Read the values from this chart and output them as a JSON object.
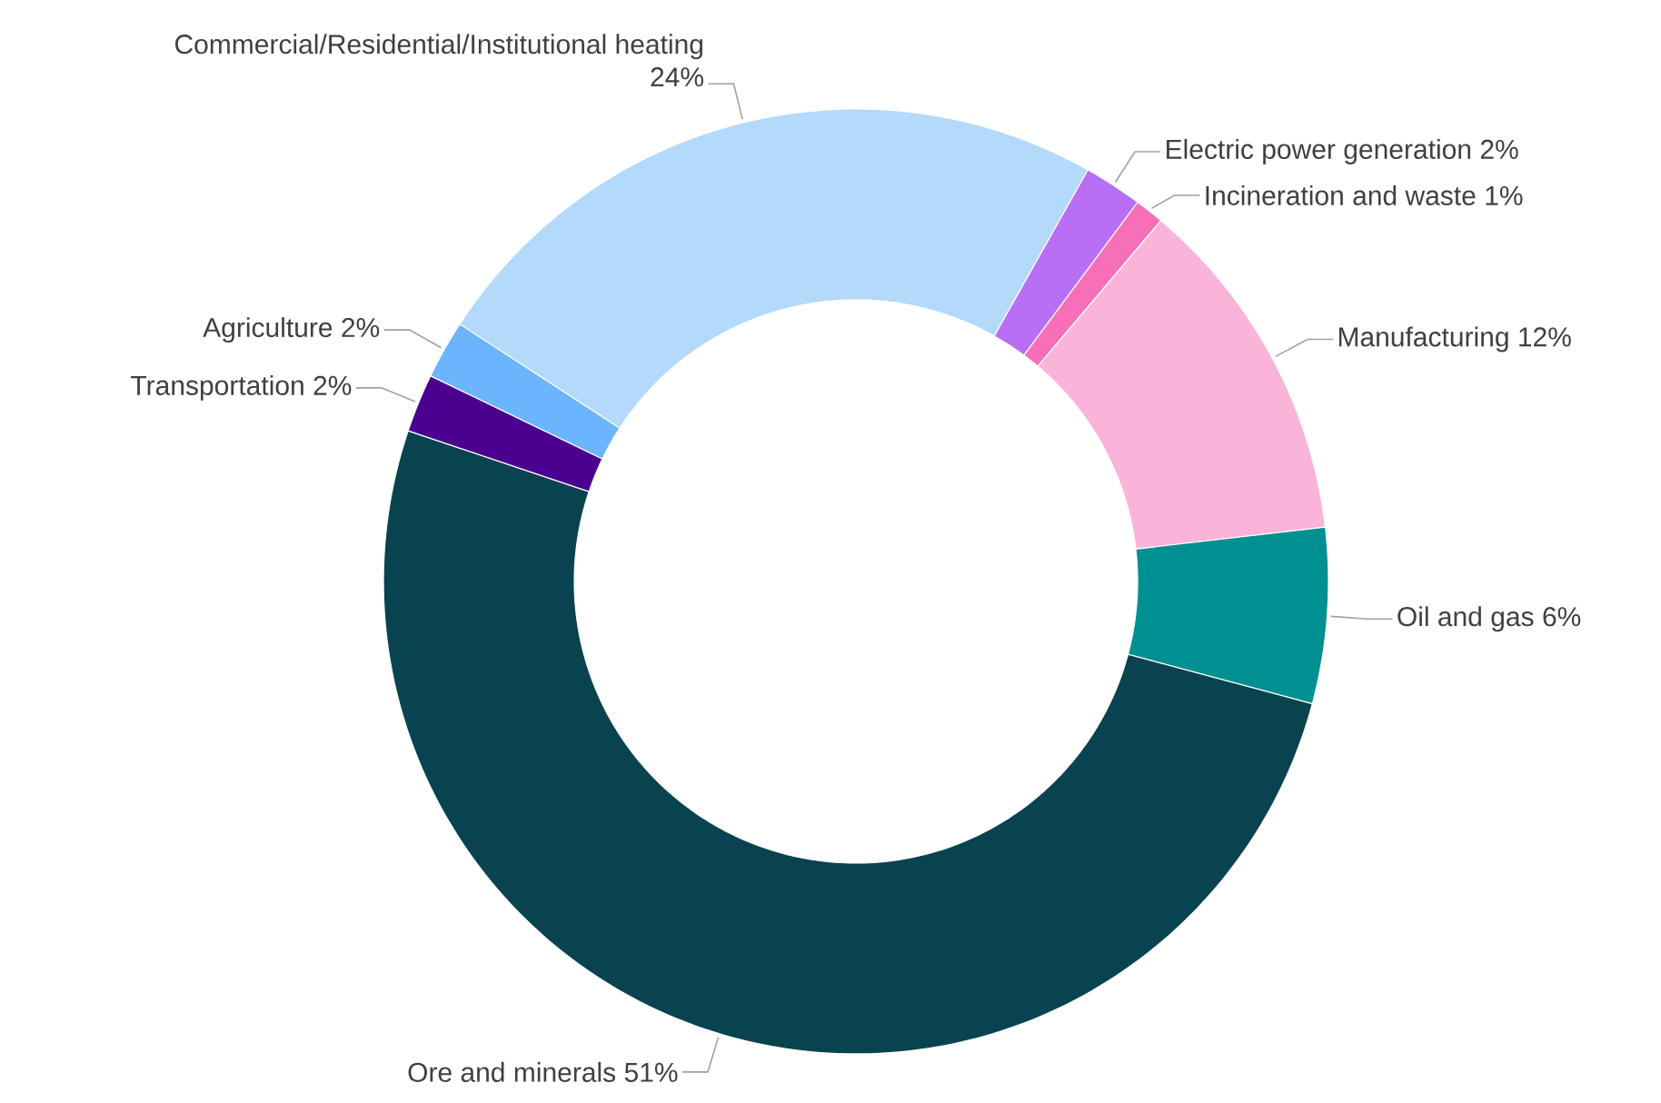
{
  "chart_data": {
    "type": "donut",
    "categories": [
      "Commercial/Residential/Institutional heating",
      "Electric power generation",
      "Incineration and waste",
      "Manufacturing",
      "Oil and gas",
      "Ore and minerals",
      "Transportation",
      "Agriculture"
    ],
    "values": [
      24,
      2,
      1,
      12,
      6,
      51,
      2,
      2
    ],
    "colors": [
      "#b3d9fb",
      "#b86ef5",
      "#f76fb8",
      "#fbb4d9",
      "#009091",
      "#09434f",
      "#4b0090",
      "#6bb5ff"
    ],
    "value_labels": [
      "24%",
      "2%",
      "1%",
      "12%",
      "6%",
      "51%",
      "2%",
      "2%"
    ]
  }
}
